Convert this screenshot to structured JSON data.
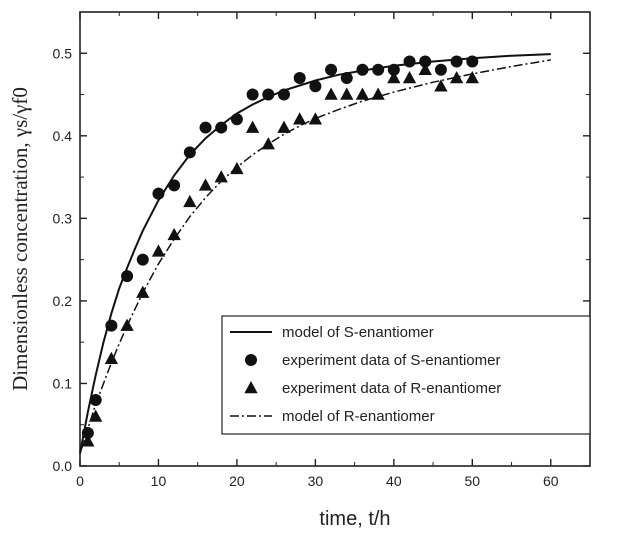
{
  "chart_data": {
    "type": "scatter",
    "xlabel": "time, t/h",
    "ylabel": "Dimensionless concentration, γs/γf0",
    "xlim": [
      0,
      65
    ],
    "ylim": [
      0,
      0.55
    ],
    "xticks": [
      0,
      10,
      20,
      30,
      40,
      50,
      60
    ],
    "yticks": [
      0.0,
      0.1,
      0.2,
      0.3,
      0.4,
      0.5
    ],
    "yticks_text": [
      "0.0",
      "0.1",
      "0.2",
      "0.3",
      "0.4",
      "0.5"
    ],
    "legend_position": "bottom-right",
    "series": [
      {
        "name": "model of S-enantiomer",
        "kind": "line",
        "style": "solid",
        "x": [
          0,
          1,
          2,
          3,
          4,
          5,
          6,
          7,
          8,
          10,
          12,
          14,
          16,
          18,
          20,
          22,
          24,
          26,
          28,
          30,
          33,
          36,
          40,
          45,
          50,
          55,
          60
        ],
        "y": [
          0.015,
          0.065,
          0.11,
          0.15,
          0.185,
          0.215,
          0.24,
          0.263,
          0.285,
          0.322,
          0.352,
          0.377,
          0.397,
          0.413,
          0.427,
          0.438,
          0.447,
          0.455,
          0.461,
          0.467,
          0.474,
          0.479,
          0.485,
          0.49,
          0.494,
          0.497,
          0.499
        ]
      },
      {
        "name": "experiment data of S-enantiomer",
        "kind": "scatter",
        "marker": "circle",
        "x": [
          1,
          2,
          4,
          6,
          8,
          10,
          12,
          14,
          16,
          18,
          20,
          22,
          24,
          26,
          28,
          30,
          32,
          34,
          36,
          38,
          40,
          42,
          44,
          46,
          48,
          50
        ],
        "y": [
          0.04,
          0.08,
          0.17,
          0.23,
          0.25,
          0.33,
          0.34,
          0.38,
          0.41,
          0.41,
          0.42,
          0.45,
          0.45,
          0.45,
          0.47,
          0.46,
          0.48,
          0.47,
          0.48,
          0.48,
          0.48,
          0.49,
          0.49,
          0.48,
          0.49,
          0.49
        ]
      },
      {
        "name": "experiment data of R-enantiomer",
        "kind": "scatter",
        "marker": "triangle",
        "x": [
          1,
          2,
          4,
          6,
          8,
          10,
          12,
          14,
          16,
          18,
          20,
          22,
          24,
          26,
          28,
          30,
          32,
          34,
          36,
          38,
          40,
          42,
          44,
          46,
          48,
          50
        ],
        "y": [
          0.03,
          0.06,
          0.13,
          0.17,
          0.21,
          0.26,
          0.28,
          0.32,
          0.34,
          0.35,
          0.36,
          0.41,
          0.39,
          0.41,
          0.42,
          0.42,
          0.45,
          0.45,
          0.45,
          0.45,
          0.47,
          0.47,
          0.48,
          0.46,
          0.47,
          0.47
        ]
      },
      {
        "name": "model of R-enantiomer",
        "kind": "line",
        "style": "dash-dot",
        "x": [
          0,
          1,
          2,
          3,
          4,
          5,
          6,
          8,
          10,
          12,
          14,
          16,
          18,
          20,
          22,
          24,
          26,
          28,
          30,
          33,
          36,
          40,
          45,
          50,
          55,
          60
        ],
        "y": [
          0.015,
          0.045,
          0.075,
          0.1,
          0.125,
          0.148,
          0.17,
          0.21,
          0.245,
          0.275,
          0.302,
          0.325,
          0.345,
          0.362,
          0.377,
          0.39,
          0.402,
          0.412,
          0.421,
          0.432,
          0.442,
          0.453,
          0.465,
          0.475,
          0.484,
          0.492
        ]
      }
    ]
  }
}
